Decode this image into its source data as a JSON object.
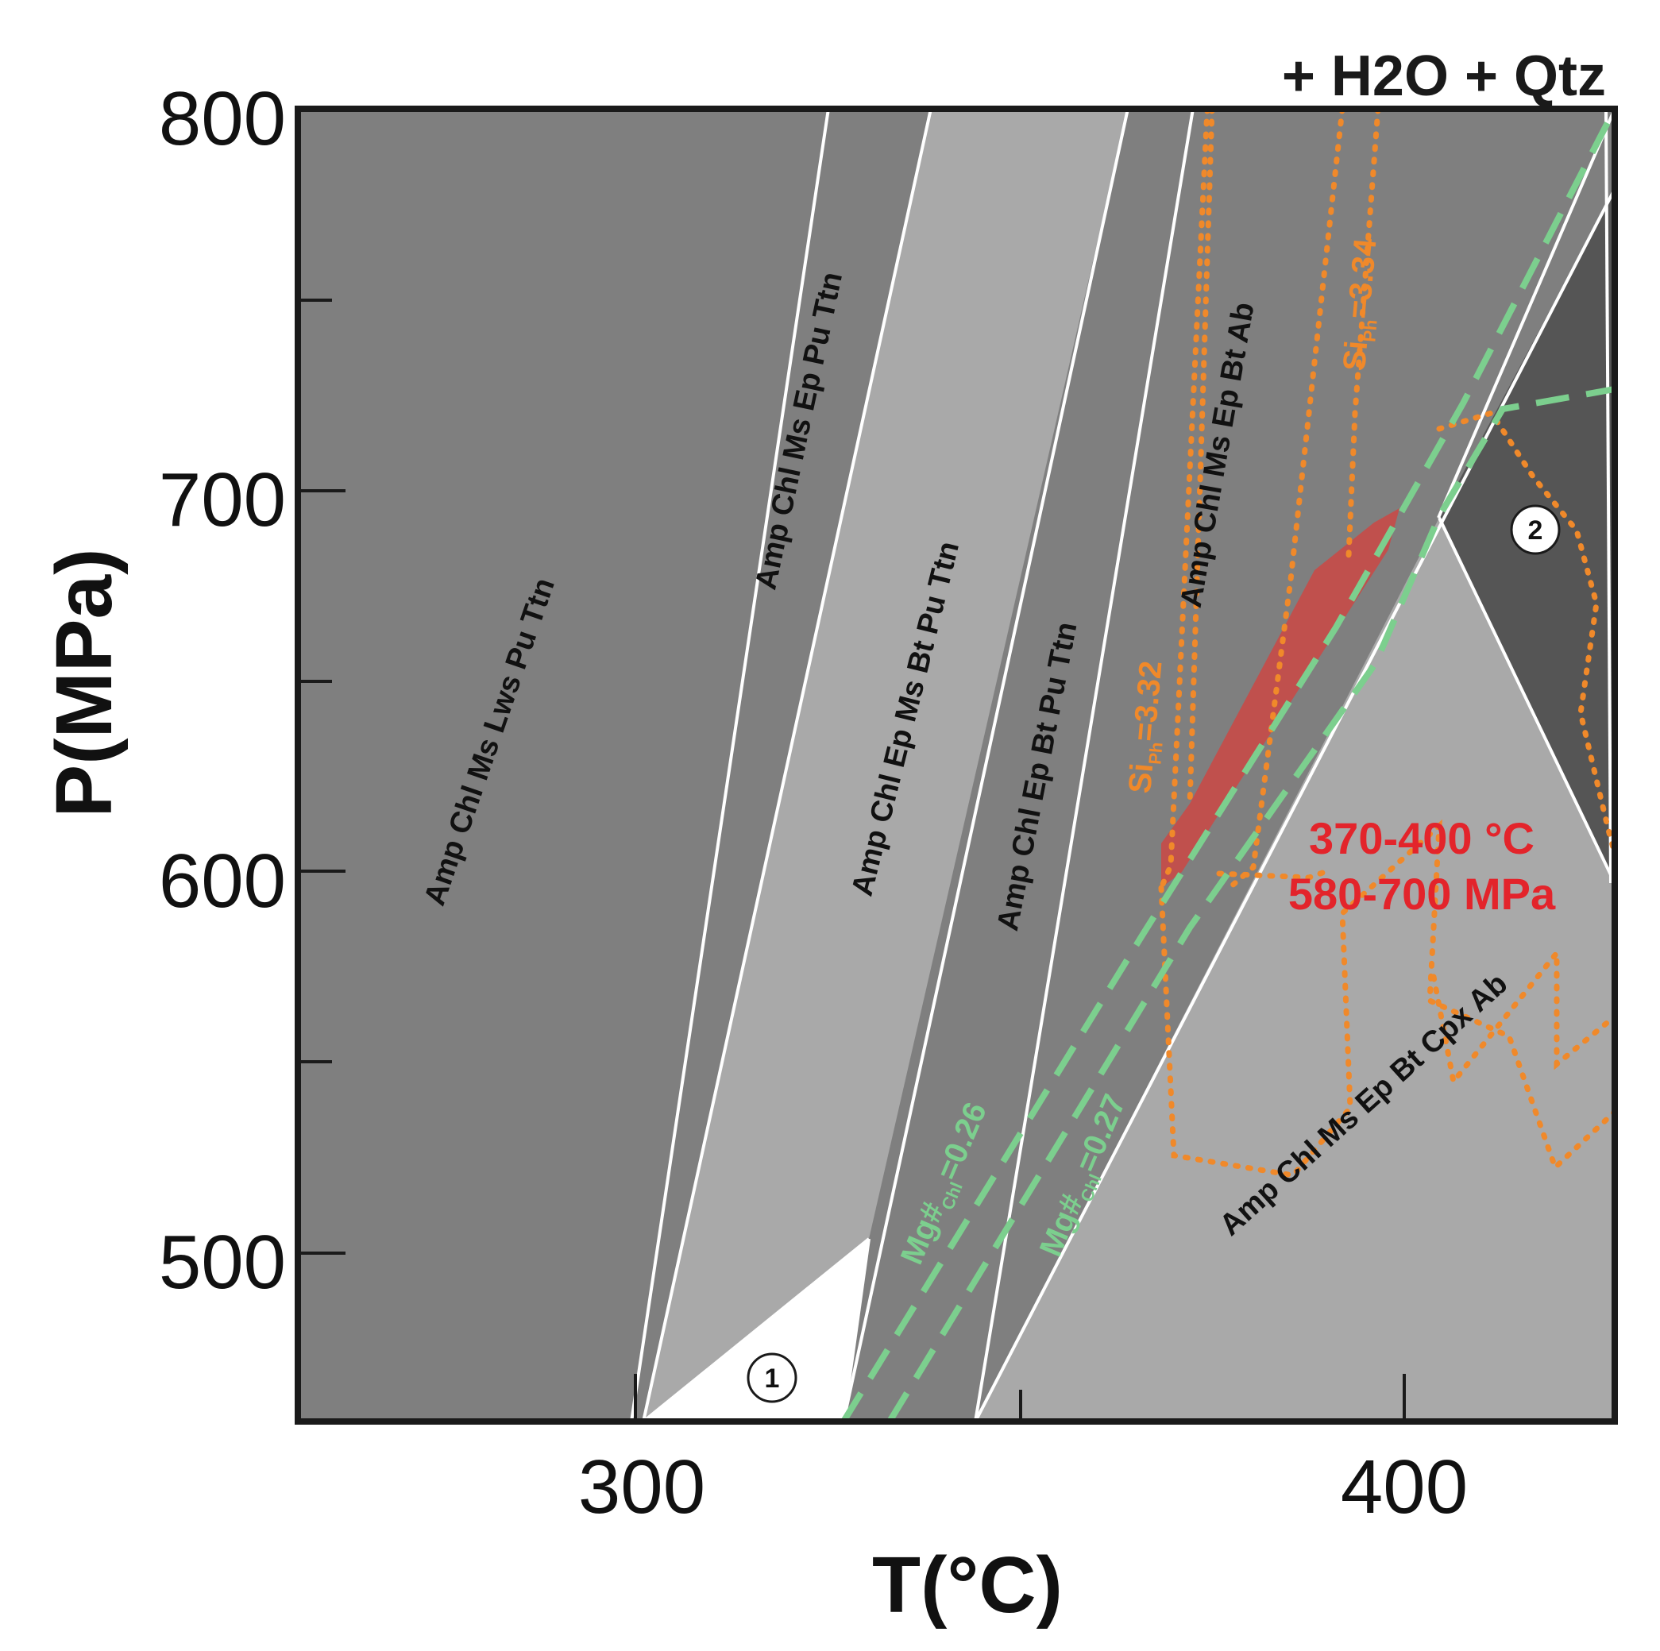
{
  "diagram": {
    "header": "+ H2O + Qtz",
    "x_axis": {
      "title": "T(°C)",
      "ticks": [
        {
          "value": 300,
          "label": "300"
        },
        {
          "value": 400,
          "label": "400"
        }
      ]
    },
    "y_axis": {
      "title": "P(MPa)",
      "ticks": [
        {
          "value": 800,
          "label": "800"
        },
        {
          "value": 700,
          "label": "700"
        },
        {
          "value": 600,
          "label": "600"
        },
        {
          "value": 500,
          "label": "500"
        }
      ]
    },
    "fields": {
      "f1": "Amp Chl Ms Lws Pu Ttn",
      "f2": "Amp Chl Ms Ep Pu Ttn",
      "f3": "Amp Chl Ep Ms Bt Pu Ttn",
      "f4": "Amp Chl Ep Bt Pu Ttn",
      "f5": "Amp Chl Ms Ep Bt Ab",
      "f6": "Amp Chl Ms Ep Bt Cpx Ab"
    },
    "markers": {
      "m1": "1",
      "m2": "2"
    },
    "isopleths": {
      "si_ph_332": {
        "base": "Si",
        "sub": "Ph",
        "value": "=3.32"
      },
      "si_ph_334": {
        "base": "Si",
        "sub": "Ph",
        "value": "=3.34"
      },
      "mg_chl_026": {
        "base": "Mg#",
        "sub": "Chl",
        "value": "=0.26"
      },
      "mg_chl_027": {
        "base": "Mg#",
        "sub": "Chl",
        "value": "=0.27"
      }
    },
    "result": {
      "temperature": "370-400 °C",
      "pressure": "580-700 MPa"
    },
    "colors": {
      "dark_field": "#7f7f7f",
      "light_field": "#a9a9a9",
      "darkest_field": "#555555",
      "white_field": "#ffffff",
      "result_fill": "#c0504d",
      "orange_isopleth": "#f0892a",
      "green_isopleth": "#7ccf8e",
      "result_text": "#e3242b"
    }
  }
}
